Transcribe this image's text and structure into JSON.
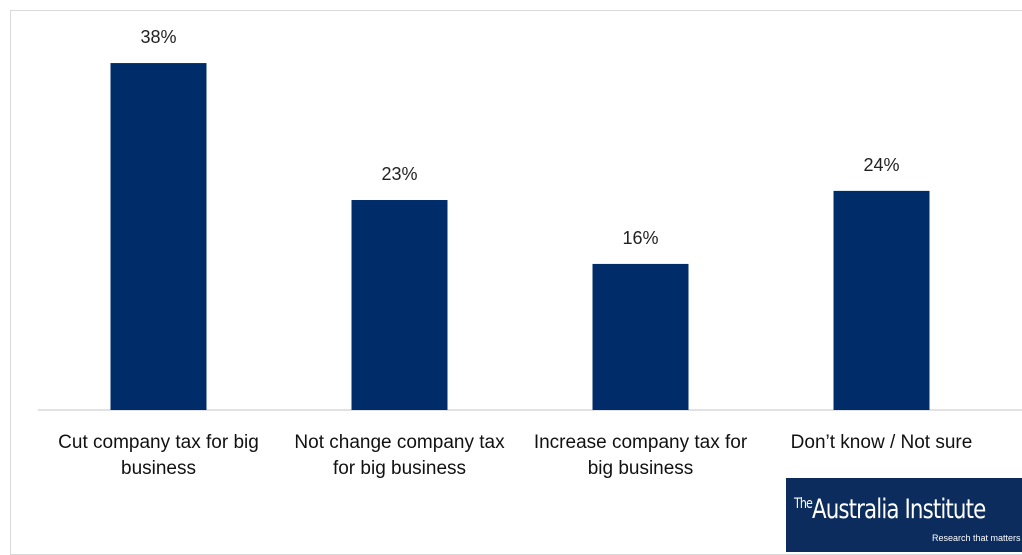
{
  "chart_data": {
    "type": "bar",
    "categories": [
      "Cut company tax for big business",
      "Not change company tax for big business",
      "Increase company tax for big business",
      "Don’t know / Not sure"
    ],
    "values": [
      38,
      23,
      16,
      24
    ],
    "value_labels": [
      "38%",
      "23%",
      "16%",
      "24%"
    ],
    "color": "#002d6a",
    "logo": {
      "prefix": "The",
      "name": "Australia Institute",
      "tagline": "Research that matters"
    }
  }
}
